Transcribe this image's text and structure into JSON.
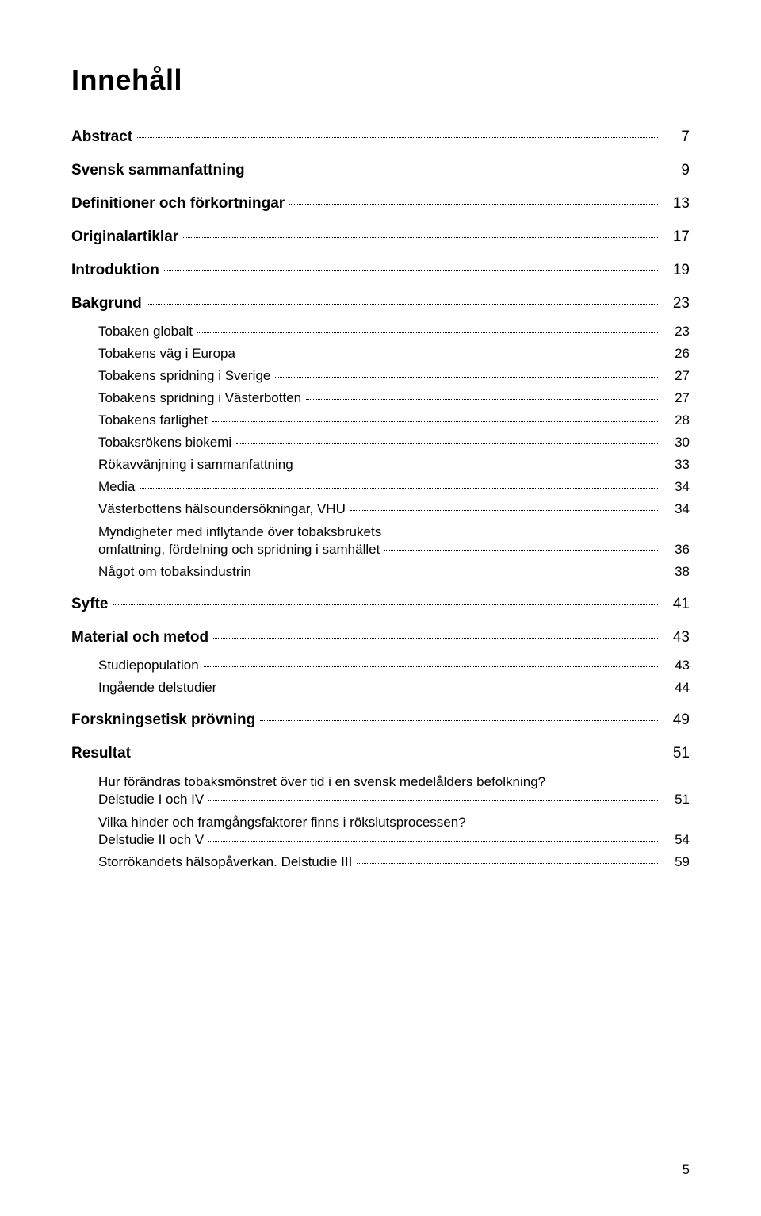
{
  "page": {
    "title": "Innehåll",
    "pageNumber": "5",
    "fonts": {
      "title_pt": 36,
      "level0_pt": 19,
      "level1_pt": 17
    },
    "colors": {
      "text": "#000000",
      "background": "#ffffff",
      "leader": "#000000"
    }
  },
  "toc": [
    {
      "label": "Abstract",
      "page": "7",
      "level": 0,
      "bold": true
    },
    {
      "label": "Svensk sammanfattning",
      "page": "9",
      "level": 0,
      "bold": true
    },
    {
      "label": "Definitioner och förkortningar",
      "page": "13",
      "level": 0,
      "bold": true
    },
    {
      "label": "Originalartiklar",
      "page": "17",
      "level": 0,
      "bold": true
    },
    {
      "label": "Introduktion",
      "page": "19",
      "level": 0,
      "bold": true
    },
    {
      "label": "Bakgrund",
      "page": "23",
      "level": 0,
      "bold": true
    },
    {
      "label": "Tobaken globalt",
      "page": "23",
      "level": 1,
      "bold": false
    },
    {
      "label": "Tobakens väg i Europa",
      "page": "26",
      "level": 1,
      "bold": false
    },
    {
      "label": "Tobakens spridning i Sverige",
      "page": "27",
      "level": 1,
      "bold": false
    },
    {
      "label": "Tobakens spridning i Västerbotten",
      "page": "27",
      "level": 1,
      "bold": false
    },
    {
      "label": "Tobakens farlighet",
      "page": "28",
      "level": 1,
      "bold": false
    },
    {
      "label": "Tobaksrökens biokemi",
      "page": "30",
      "level": 1,
      "bold": false
    },
    {
      "label": "Rökavvänjning i sammanfattning",
      "page": "33",
      "level": 1,
      "bold": false
    },
    {
      "label": "Media",
      "page": "34",
      "level": 1,
      "bold": false
    },
    {
      "label": "Västerbottens hälsoundersökningar, VHU",
      "page": "34",
      "level": 1,
      "bold": false
    },
    {
      "desc": "Myndigheter med inflytande över tobaksbrukets",
      "level": 1
    },
    {
      "label": "omfattning, fördelning och spridning i samhället",
      "page": "36",
      "level": 1,
      "bold": false
    },
    {
      "label": "Något om tobaksindustrin",
      "page": "38",
      "level": 1,
      "bold": false
    },
    {
      "label": "Syfte",
      "page": "41",
      "level": 0,
      "bold": true
    },
    {
      "label": "Material och metod",
      "page": "43",
      "level": 0,
      "bold": true
    },
    {
      "label": "Studiepopulation",
      "page": "43",
      "level": 1,
      "bold": false
    },
    {
      "label": "Ingående delstudier",
      "page": "44",
      "level": 1,
      "bold": false
    },
    {
      "label": "Forskningsetisk prövning",
      "page": "49",
      "level": 0,
      "bold": true
    },
    {
      "label": "Resultat",
      "page": "51",
      "level": 0,
      "bold": true
    },
    {
      "desc": "Hur förändras tobaksmönstret över tid i en svensk medelålders befolkning?",
      "level": 1
    },
    {
      "label": "Delstudie I och IV",
      "page": "51",
      "level": 1,
      "bold": false
    },
    {
      "desc": "Vilka hinder och framgångsfaktorer finns i rökslutsprocessen?",
      "level": 1
    },
    {
      "label": "Delstudie II och V",
      "page": "54",
      "level": 1,
      "bold": false
    },
    {
      "label": "Storrökandets hälsopåverkan. Delstudie III",
      "page": "59",
      "level": 1,
      "bold": false
    }
  ]
}
